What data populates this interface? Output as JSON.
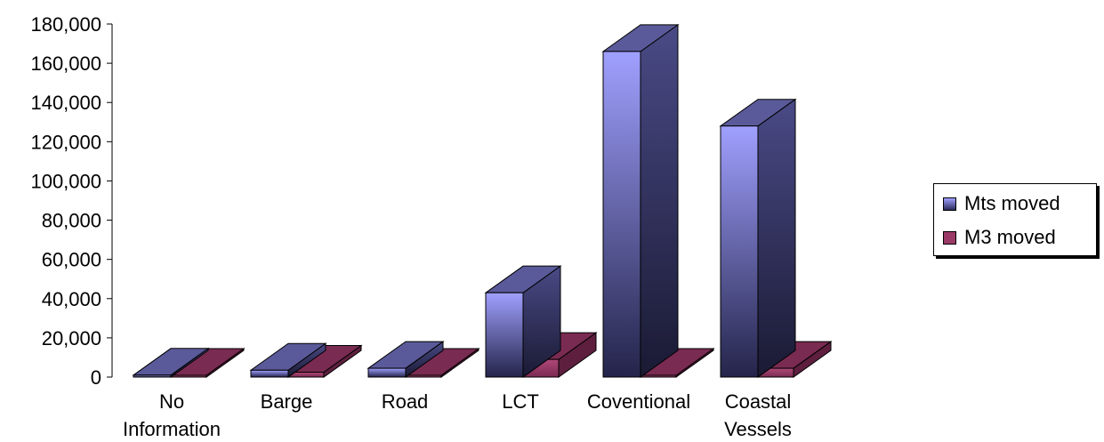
{
  "chart_data": {
    "type": "bar",
    "title": "",
    "xlabel": "",
    "ylabel": "",
    "ylim": [
      0,
      180000
    ],
    "y_ticks": [
      "0",
      "20,000",
      "40,000",
      "60,000",
      "80,000",
      "100,000",
      "120,000",
      "140,000",
      "160,000",
      "180,000"
    ],
    "categories": [
      [
        "No",
        "Information"
      ],
      [
        "Barge"
      ],
      [
        "Road"
      ],
      [
        "LCT"
      ],
      [
        "Coventional"
      ],
      [
        "Coastal",
        "Vessels"
      ]
    ],
    "series": [
      {
        "name": "Mts moved",
        "values": [
          1000,
          3500,
          4500,
          43000,
          166000,
          128000
        ]
      },
      {
        "name": "M3 moved",
        "values": [
          0,
          2500,
          0,
          9000,
          0,
          4500
        ]
      }
    ],
    "colors": {
      "mts_front_light": "#9a9aff",
      "mts_front_dark": "#2a2a5a",
      "mts_side": "#3a3a6e",
      "mts_top": "#5a5a9a",
      "m3_front": "#9b3a66",
      "m3_side": "#5e1f3e",
      "m3_top": "#7a2b52"
    },
    "grid": false,
    "legend_position": "right",
    "three_d": true
  }
}
